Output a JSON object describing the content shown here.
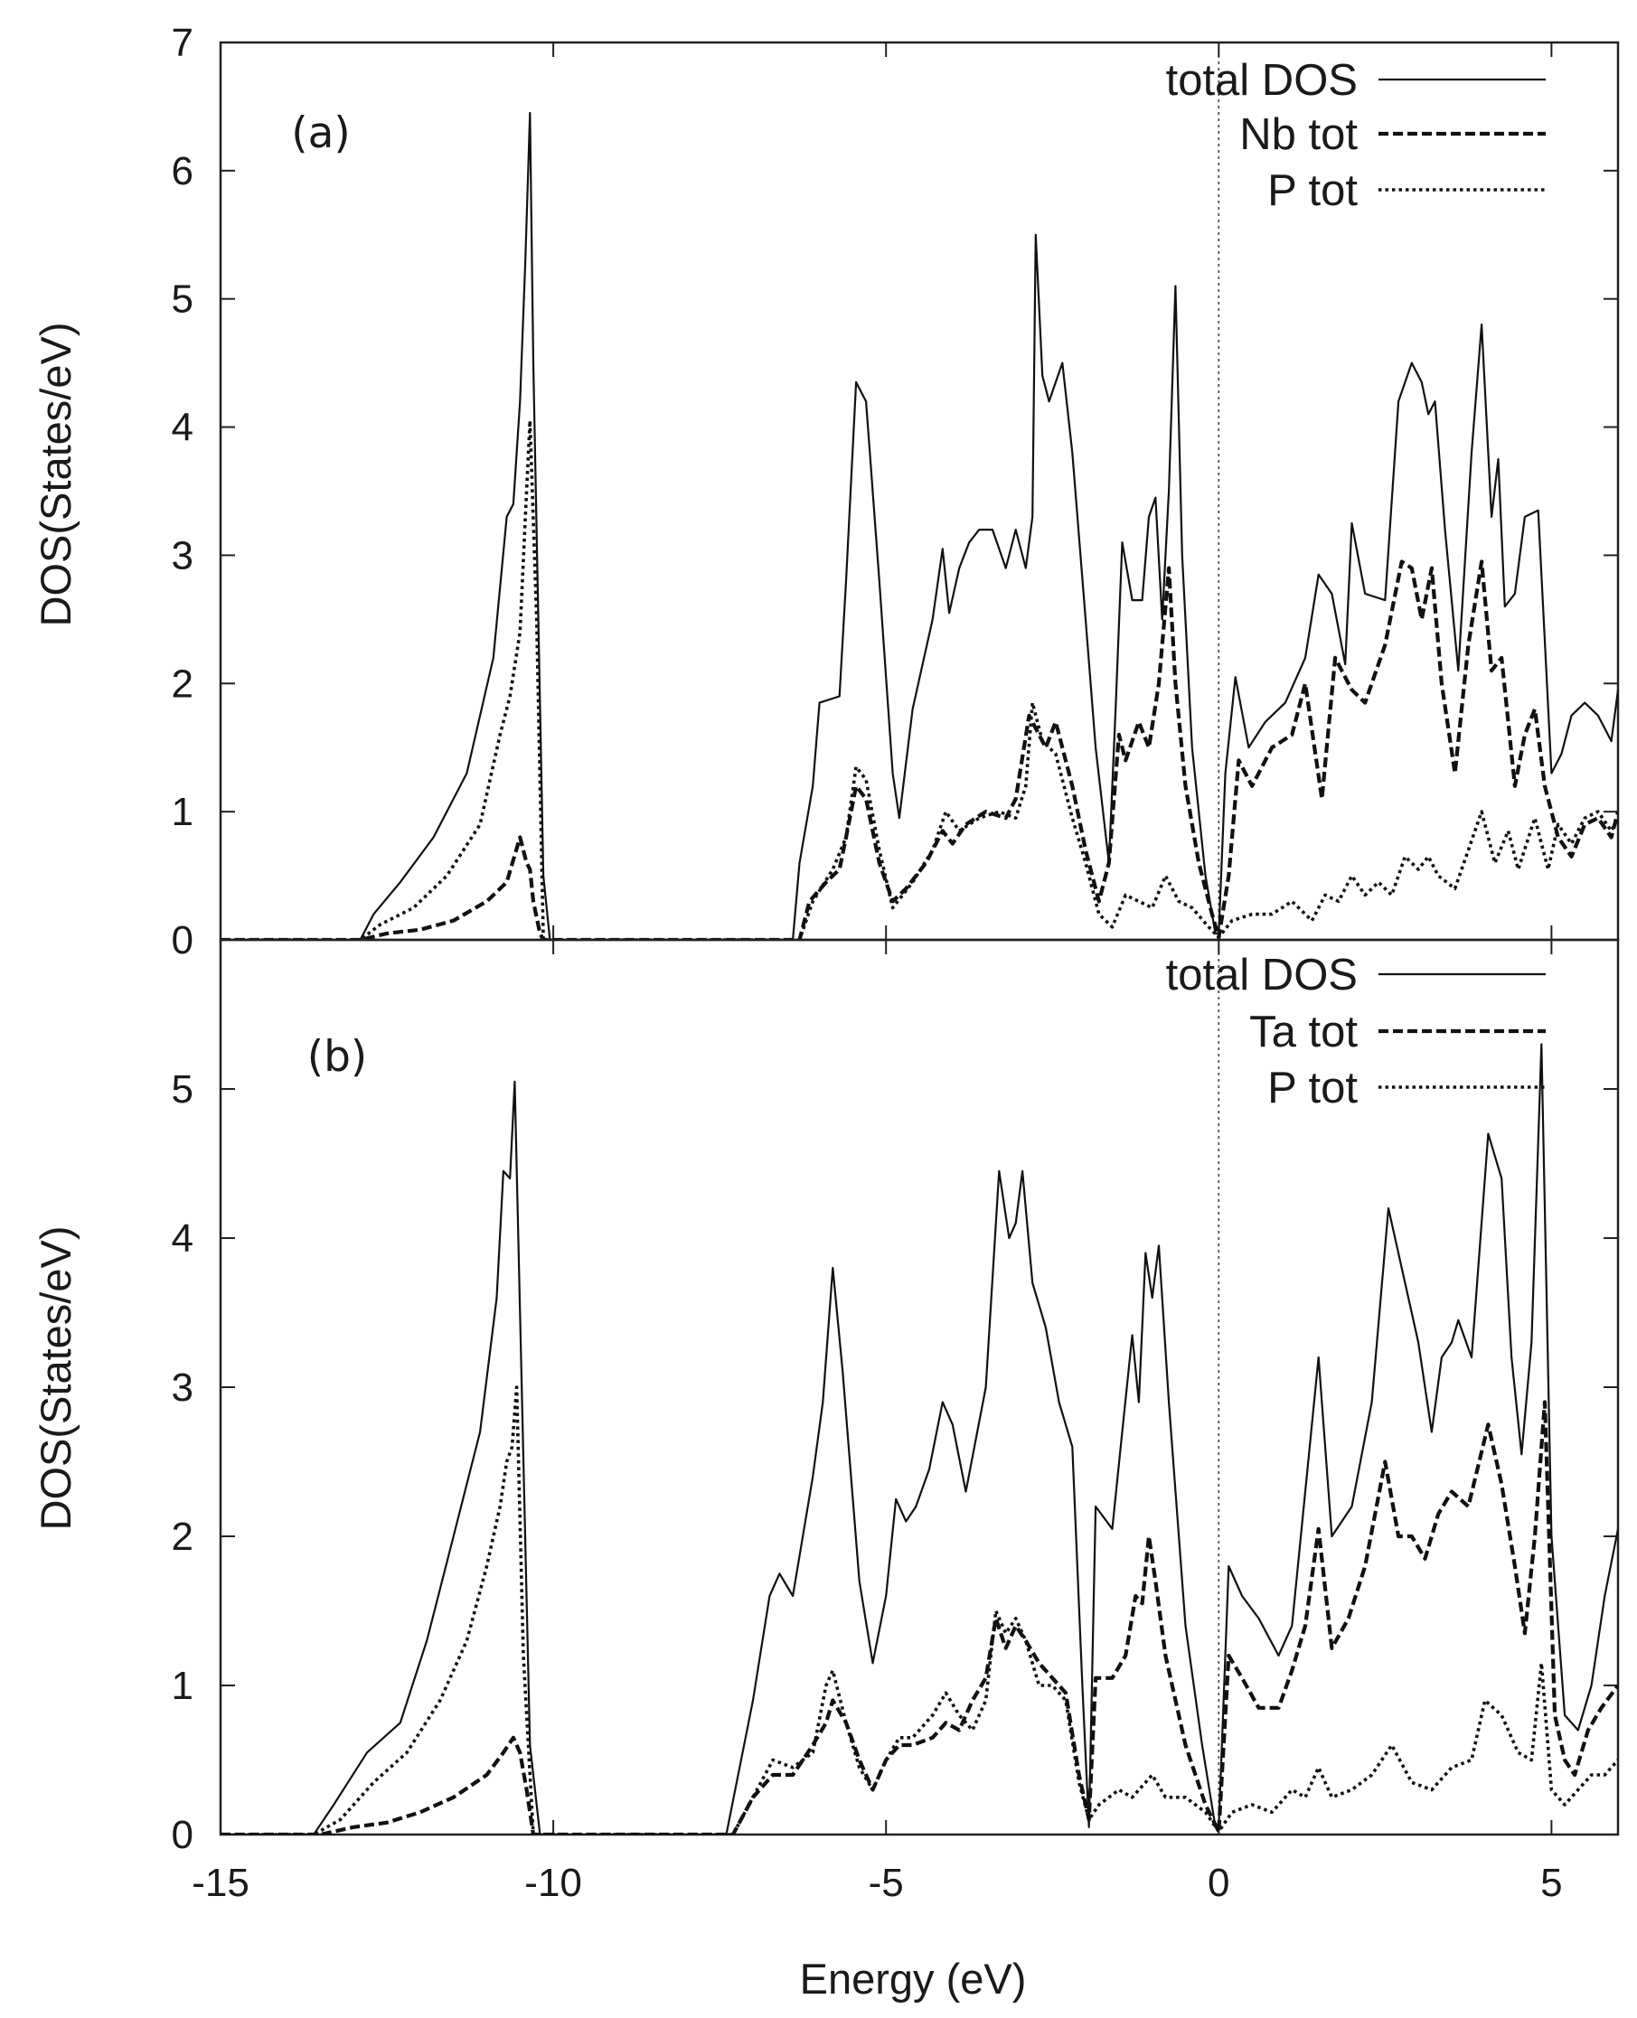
{
  "figure": {
    "xlabel": "Energy (eV)",
    "ylabel": "DOS(States/eV)"
  },
  "chart_data": [
    {
      "type": "line",
      "panel_label": "(a)",
      "xlabel": "Energy (eV)",
      "ylabel": "DOS(States/eV)",
      "xlim": [
        -15,
        6
      ],
      "ylim": [
        0,
        7
      ],
      "xticks": [
        -15,
        -10,
        -5,
        0,
        5
      ],
      "yticks": [
        0,
        1,
        2,
        3,
        4,
        5,
        6,
        7
      ],
      "fermi_level": 0,
      "legend_position": "top-right",
      "series": [
        {
          "name": "total DOS",
          "style": "solid",
          "x": [
            -15,
            -12.9,
            -12.7,
            -12.3,
            -11.8,
            -11.3,
            -10.9,
            -10.7,
            -10.6,
            -10.5,
            -10.42,
            -10.35,
            -10.3,
            -10.15,
            -10.05,
            -8,
            -6.4,
            -6.3,
            -6.1,
            -6.0,
            -5.7,
            -5.6,
            -5.45,
            -5.3,
            -5.1,
            -4.9,
            -4.8,
            -4.6,
            -4.3,
            -4.15,
            -4.05,
            -3.9,
            -3.75,
            -3.6,
            -3.4,
            -3.2,
            -3.05,
            -2.9,
            -2.8,
            -2.75,
            -2.65,
            -2.55,
            -2.45,
            -2.35,
            -2.2,
            -2.0,
            -1.85,
            -1.65,
            -1.55,
            -1.45,
            -1.3,
            -1.15,
            -1.05,
            -0.95,
            -0.85,
            -0.75,
            -0.65,
            -0.55,
            -0.4,
            -0.2,
            -0.05,
            0,
            0.1,
            0.25,
            0.45,
            0.7,
            1.0,
            1.3,
            1.5,
            1.7,
            1.9,
            2.0,
            2.2,
            2.5,
            2.7,
            2.9,
            3.05,
            3.15,
            3.25,
            3.4,
            3.6,
            3.8,
            3.95,
            4.1,
            4.2,
            4.3,
            4.45,
            4.6,
            4.8,
            5.0,
            5.15,
            5.3,
            5.5,
            5.7,
            5.9,
            6.0
          ],
          "y": [
            0,
            0,
            0.2,
            0.45,
            0.8,
            1.3,
            2.2,
            3.3,
            3.4,
            4.2,
            5.3,
            6.45,
            4.5,
            0.5,
            0,
            0,
            0,
            0.6,
            1.2,
            1.85,
            1.9,
            2.8,
            4.35,
            4.2,
            2.8,
            1.3,
            0.95,
            1.8,
            2.5,
            3.05,
            2.55,
            2.9,
            3.1,
            3.2,
            3.2,
            2.9,
            3.2,
            2.9,
            3.3,
            5.5,
            4.4,
            4.2,
            4.35,
            4.5,
            3.8,
            2.5,
            1.5,
            0.6,
            1.8,
            3.1,
            2.65,
            2.65,
            3.3,
            3.45,
            2.5,
            3.5,
            5.1,
            3.0,
            1.5,
            0.5,
            0.05,
            0.05,
            1.3,
            2.05,
            1.5,
            1.7,
            1.85,
            2.2,
            2.85,
            2.7,
            2.15,
            3.25,
            2.7,
            2.65,
            4.2,
            4.5,
            4.35,
            4.1,
            4.2,
            3.2,
            2.1,
            3.8,
            4.8,
            3.3,
            3.75,
            2.6,
            2.7,
            3.3,
            3.35,
            1.3,
            1.45,
            1.75,
            1.85,
            1.75,
            1.55,
            1.95
          ]
        },
        {
          "name": "Nb tot",
          "style": "dashed",
          "x": [
            -15,
            -12.9,
            -12.5,
            -12.0,
            -11.5,
            -11.0,
            -10.7,
            -10.5,
            -10.4,
            -10.35,
            -10.3,
            -10.2,
            -10.15,
            -8,
            -6.3,
            -6.15,
            -5.9,
            -5.7,
            -5.6,
            -5.45,
            -5.3,
            -5.1,
            -4.9,
            -4.7,
            -4.4,
            -4.15,
            -4.0,
            -3.8,
            -3.5,
            -3.2,
            -3.05,
            -2.85,
            -2.7,
            -2.6,
            -2.45,
            -2.2,
            -2.0,
            -1.8,
            -1.65,
            -1.5,
            -1.4,
            -1.2,
            -1.05,
            -0.9,
            -0.75,
            -0.65,
            -0.5,
            -0.3,
            -0.1,
            0,
            0.15,
            0.3,
            0.5,
            0.8,
            1.1,
            1.3,
            1.55,
            1.75,
            2.0,
            2.2,
            2.5,
            2.75,
            2.9,
            3.05,
            3.2,
            3.35,
            3.55,
            3.75,
            3.95,
            4.1,
            4.25,
            4.45,
            4.6,
            4.75,
            4.9,
            5.1,
            5.3,
            5.5,
            5.7,
            5.9,
            6.0
          ],
          "y": [
            0,
            0,
            0.05,
            0.08,
            0.15,
            0.3,
            0.45,
            0.8,
            0.6,
            0.55,
            0.3,
            0.05,
            0,
            0,
            0,
            0.3,
            0.45,
            0.55,
            0.8,
            1.2,
            1.1,
            0.6,
            0.3,
            0.4,
            0.6,
            0.85,
            0.75,
            0.9,
            1.0,
            0.95,
            1.1,
            1.75,
            1.6,
            1.5,
            1.7,
            1.2,
            0.7,
            0.3,
            0.6,
            1.6,
            1.4,
            1.7,
            1.5,
            2.0,
            2.9,
            2.0,
            1.2,
            0.6,
            0.2,
            0.02,
            0.5,
            1.4,
            1.2,
            1.5,
            1.6,
            2.0,
            1.1,
            2.2,
            1.95,
            1.85,
            2.3,
            2.95,
            2.9,
            2.5,
            2.9,
            2.0,
            1.3,
            2.3,
            2.95,
            2.1,
            2.2,
            1.2,
            1.6,
            1.8,
            1.2,
            0.8,
            0.65,
            0.9,
            0.95,
            0.8,
            1.0
          ]
        },
        {
          "name": "P tot",
          "style": "dotted",
          "x": [
            -15,
            -12.9,
            -12.6,
            -12.1,
            -11.6,
            -11.1,
            -10.8,
            -10.65,
            -10.5,
            -10.42,
            -10.35,
            -10.25,
            -10.15,
            -8,
            -6.3,
            -6.1,
            -5.8,
            -5.6,
            -5.45,
            -5.3,
            -5.1,
            -4.9,
            -4.6,
            -4.3,
            -4.1,
            -3.9,
            -3.6,
            -3.3,
            -3.05,
            -2.9,
            -2.8,
            -2.65,
            -2.45,
            -2.2,
            -2.0,
            -1.8,
            -1.6,
            -1.4,
            -1.2,
            -1.0,
            -0.8,
            -0.6,
            -0.4,
            -0.15,
            0,
            0.2,
            0.5,
            0.8,
            1.1,
            1.4,
            1.6,
            1.8,
            2.0,
            2.2,
            2.4,
            2.6,
            2.8,
            3.0,
            3.15,
            3.3,
            3.55,
            3.75,
            3.95,
            4.15,
            4.35,
            4.5,
            4.75,
            4.95,
            5.1,
            5.3,
            5.5,
            5.7,
            5.9,
            6.0
          ],
          "y": [
            0,
            0,
            0.12,
            0.25,
            0.5,
            0.9,
            1.6,
            1.9,
            2.4,
            3.3,
            4.05,
            2.5,
            0,
            0,
            0,
            0.3,
            0.55,
            0.8,
            1.35,
            1.25,
            0.7,
            0.25,
            0.45,
            0.7,
            1.0,
            0.85,
            0.95,
            1.0,
            0.95,
            1.2,
            1.85,
            1.55,
            1.45,
            0.95,
            0.6,
            0.2,
            0.1,
            0.35,
            0.3,
            0.25,
            0.5,
            0.3,
            0.25,
            0.1,
            0.02,
            0.15,
            0.2,
            0.2,
            0.3,
            0.15,
            0.35,
            0.3,
            0.5,
            0.35,
            0.45,
            0.35,
            0.65,
            0.55,
            0.65,
            0.5,
            0.4,
            0.7,
            1.0,
            0.6,
            0.85,
            0.55,
            0.95,
            0.55,
            0.9,
            0.75,
            0.95,
            1.0,
            0.85,
            0.95
          ]
        }
      ]
    },
    {
      "type": "line",
      "panel_label": "(b)",
      "xlabel": "Energy (eV)",
      "ylabel": "DOS(States/eV)",
      "xlim": [
        -15,
        6
      ],
      "ylim": [
        0,
        6
      ],
      "xticks": [
        -15,
        -10,
        -5,
        0,
        5
      ],
      "yticks": [
        0,
        1,
        2,
        3,
        4,
        5
      ],
      "fermi_level": 0,
      "legend_position": "top-right",
      "series": [
        {
          "name": "total DOS",
          "style": "solid",
          "x": [
            -15,
            -13.6,
            -13.3,
            -12.8,
            -12.3,
            -11.9,
            -11.5,
            -11.1,
            -10.85,
            -10.75,
            -10.65,
            -10.58,
            -10.5,
            -10.35,
            -10.2,
            -8,
            -7.4,
            -7.0,
            -6.75,
            -6.6,
            -6.4,
            -6.1,
            -5.95,
            -5.8,
            -5.65,
            -5.4,
            -5.2,
            -5.0,
            -4.85,
            -4.7,
            -4.55,
            -4.35,
            -4.15,
            -4.0,
            -3.8,
            -3.5,
            -3.3,
            -3.15,
            -3.05,
            -2.95,
            -2.8,
            -2.6,
            -2.4,
            -2.2,
            -2.05,
            -1.95,
            -1.85,
            -1.6,
            -1.45,
            -1.3,
            -1.2,
            -1.1,
            -1.0,
            -0.9,
            -0.75,
            -0.5,
            -0.25,
            -0.05,
            0,
            0.15,
            0.35,
            0.6,
            0.9,
            1.1,
            1.3,
            1.5,
            1.7,
            2.0,
            2.3,
            2.55,
            2.75,
            3.0,
            3.2,
            3.35,
            3.5,
            3.6,
            3.8,
            4.05,
            4.25,
            4.4,
            4.55,
            4.7,
            4.85,
            5.0,
            5.2,
            5.4,
            5.6,
            5.8,
            6.0
          ],
          "y": [
            0,
            0,
            0.2,
            0.55,
            0.75,
            1.3,
            2.0,
            2.7,
            3.6,
            4.45,
            4.4,
            5.05,
            3.5,
            0.6,
            0,
            0,
            0,
            0.9,
            1.6,
            1.75,
            1.6,
            2.4,
            2.9,
            3.8,
            3.1,
            1.7,
            1.15,
            1.6,
            2.25,
            2.1,
            2.2,
            2.45,
            2.9,
            2.75,
            2.3,
            3.0,
            4.45,
            4.0,
            4.1,
            4.45,
            3.7,
            3.4,
            2.9,
            2.6,
            1.0,
            0.05,
            2.2,
            2.05,
            2.7,
            3.35,
            2.9,
            3.9,
            3.6,
            3.95,
            2.9,
            1.4,
            0.6,
            0.05,
            0.05,
            1.8,
            1.6,
            1.45,
            1.2,
            1.4,
            2.3,
            3.2,
            2.0,
            2.2,
            2.9,
            4.2,
            3.8,
            3.3,
            2.7,
            3.2,
            3.3,
            3.45,
            3.2,
            4.7,
            4.4,
            3.2,
            2.55,
            3.3,
            5.3,
            2.0,
            0.8,
            0.7,
            1.0,
            1.6,
            2.05
          ]
        },
        {
          "name": "Ta tot",
          "style": "dashed",
          "x": [
            -15,
            -13.5,
            -13.0,
            -12.5,
            -12.0,
            -11.5,
            -11.0,
            -10.75,
            -10.6,
            -10.5,
            -10.4,
            -10.3,
            -8,
            -7.3,
            -7.0,
            -6.7,
            -6.4,
            -6.1,
            -5.9,
            -5.8,
            -5.6,
            -5.4,
            -5.2,
            -5.0,
            -4.8,
            -4.6,
            -4.3,
            -4.1,
            -3.9,
            -3.7,
            -3.5,
            -3.35,
            -3.2,
            -3.05,
            -2.9,
            -2.7,
            -2.5,
            -2.3,
            -2.1,
            -1.95,
            -1.85,
            -1.6,
            -1.4,
            -1.25,
            -1.15,
            -1.05,
            -0.95,
            -0.8,
            -0.5,
            -0.2,
            0,
            0.15,
            0.35,
            0.6,
            0.9,
            1.1,
            1.3,
            1.5,
            1.7,
            1.95,
            2.2,
            2.5,
            2.7,
            2.9,
            3.1,
            3.3,
            3.5,
            3.75,
            4.05,
            4.25,
            4.45,
            4.6,
            4.75,
            4.9,
            5.05,
            5.2,
            5.35,
            5.55,
            5.75,
            6.0
          ],
          "y": [
            0,
            0,
            0.05,
            0.08,
            0.15,
            0.25,
            0.4,
            0.55,
            0.65,
            0.55,
            0.3,
            0,
            0,
            0,
            0.25,
            0.4,
            0.4,
            0.6,
            0.75,
            0.9,
            0.75,
            0.5,
            0.3,
            0.5,
            0.6,
            0.6,
            0.65,
            0.75,
            0.7,
            0.9,
            1.05,
            1.45,
            1.25,
            1.4,
            1.3,
            1.15,
            1.05,
            0.95,
            0.4,
            0.1,
            1.05,
            1.05,
            1.2,
            1.6,
            1.55,
            2.0,
            1.7,
            1.2,
            0.6,
            0.2,
            0.02,
            1.2,
            1.05,
            0.85,
            0.85,
            1.1,
            1.4,
            2.05,
            1.25,
            1.45,
            1.8,
            2.5,
            2.0,
            2.0,
            1.85,
            2.15,
            2.3,
            2.2,
            2.75,
            2.35,
            1.8,
            1.35,
            2.0,
            2.9,
            0.8,
            0.5,
            0.4,
            0.7,
            0.85,
            1.0
          ]
        },
        {
          "name": "P tot",
          "style": "dotted",
          "x": [
            -15,
            -13.6,
            -13.2,
            -12.7,
            -12.2,
            -11.7,
            -11.3,
            -11.0,
            -10.8,
            -10.7,
            -10.62,
            -10.55,
            -10.45,
            -10.3,
            -8,
            -7.3,
            -7.0,
            -6.7,
            -6.4,
            -6.1,
            -5.9,
            -5.8,
            -5.6,
            -5.4,
            -5.2,
            -5.0,
            -4.8,
            -4.6,
            -4.3,
            -4.1,
            -3.9,
            -3.7,
            -3.5,
            -3.35,
            -3.2,
            -3.05,
            -2.9,
            -2.7,
            -2.5,
            -2.3,
            -2.1,
            -1.95,
            -1.8,
            -1.5,
            -1.3,
            -1.0,
            -0.8,
            -0.5,
            -0.2,
            0,
            0.2,
            0.5,
            0.8,
            1.1,
            1.3,
            1.5,
            1.7,
            2.0,
            2.3,
            2.6,
            2.9,
            3.2,
            3.5,
            3.8,
            4.0,
            4.25,
            4.5,
            4.7,
            4.85,
            5.0,
            5.2,
            5.4,
            5.6,
            5.8,
            6.0
          ],
          "y": [
            0,
            0,
            0.1,
            0.35,
            0.55,
            0.9,
            1.3,
            1.8,
            2.2,
            2.5,
            2.6,
            3.0,
            1.2,
            0,
            0,
            0,
            0.25,
            0.5,
            0.45,
            0.55,
            1.0,
            1.1,
            0.75,
            0.45,
            0.3,
            0.5,
            0.65,
            0.65,
            0.8,
            0.95,
            0.8,
            0.7,
            0.9,
            1.5,
            1.35,
            1.45,
            1.3,
            1.0,
            1.0,
            0.9,
            0.35,
            0.1,
            0.2,
            0.3,
            0.25,
            0.4,
            0.25,
            0.25,
            0.15,
            0.02,
            0.15,
            0.2,
            0.15,
            0.3,
            0.25,
            0.45,
            0.25,
            0.3,
            0.4,
            0.6,
            0.35,
            0.3,
            0.45,
            0.5,
            0.9,
            0.8,
            0.55,
            0.5,
            1.15,
            0.3,
            0.2,
            0.3,
            0.4,
            0.4,
            0.5
          ]
        }
      ]
    }
  ]
}
